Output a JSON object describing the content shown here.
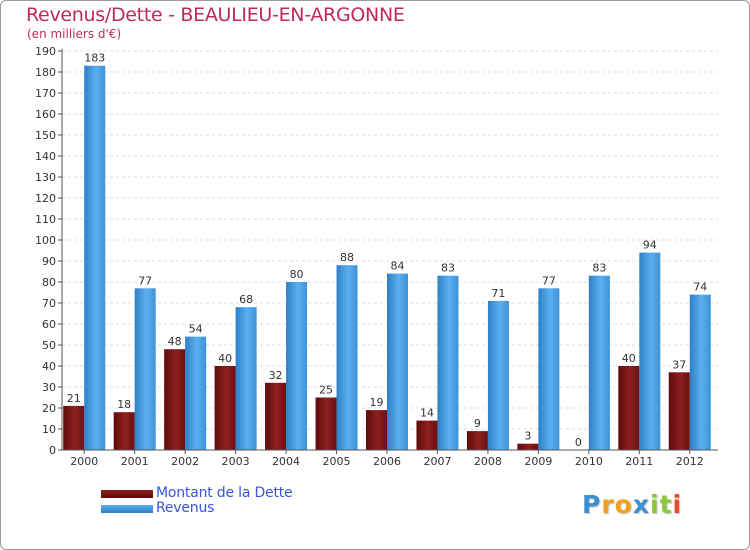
{
  "colors": {
    "title": "#c02a58",
    "dette_dark": "#5e0b0b",
    "dette_light": "#8e2020",
    "revenus_dark": "#2b7fc8",
    "revenus_light": "#5cb0ee",
    "legend_text": "#3a55d6"
  },
  "chart_data": {
    "type": "bar",
    "title": "Revenus/Dette - BEAULIEU-EN-ARGONNE",
    "subtitle": "(en milliers d'€)",
    "xlabel": "",
    "ylabel": "",
    "ylim": [
      0,
      190
    ],
    "yticks": [
      0,
      10,
      20,
      30,
      40,
      50,
      60,
      70,
      80,
      90,
      100,
      110,
      120,
      130,
      140,
      150,
      160,
      170,
      180,
      190
    ],
    "categories": [
      "2000",
      "2001",
      "2002",
      "2003",
      "2004",
      "2005",
      "2006",
      "2007",
      "2008",
      "2009",
      "2010",
      "2011",
      "2012"
    ],
    "series": [
      {
        "name": "Montant de la Dette",
        "values": [
          21,
          18,
          48,
          40,
          32,
          25,
          19,
          14,
          9,
          3,
          0,
          40,
          37
        ]
      },
      {
        "name": "Revenus",
        "values": [
          183,
          77,
          54,
          68,
          80,
          88,
          84,
          83,
          71,
          77,
          83,
          94,
          74
        ]
      }
    ],
    "legend_position": "bottom-left"
  },
  "logo": {
    "letters": [
      "P",
      "r",
      "o",
      "x",
      "i",
      "t",
      "i"
    ],
    "letter_colors": [
      "#3d8fd4",
      "#f0a020",
      "#f0a020",
      "#3d8fd4",
      "#8cc63f",
      "#8cc63f",
      "#e84a2c"
    ]
  }
}
